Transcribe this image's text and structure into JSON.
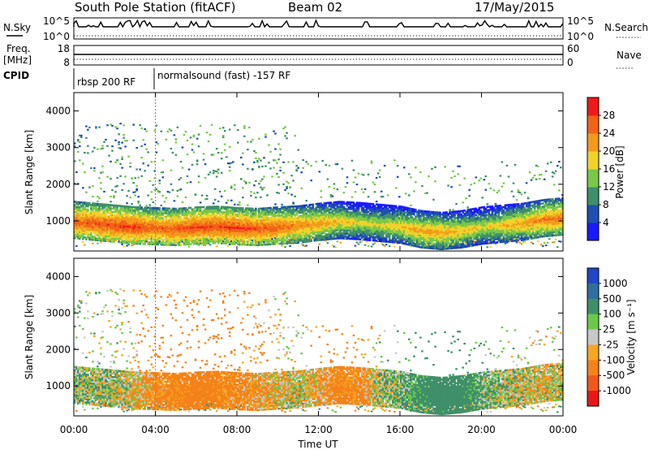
{
  "header": {
    "station": "South Pole Station (fitACF)",
    "beam": "Beam 02",
    "date": "17/May/2015"
  },
  "summary": {
    "nsky_label": "N.Sky",
    "nsearch_label": "N.Search",
    "ticks_left": [
      "10^5",
      "10^0"
    ],
    "ticks_right": [
      "10^5",
      "10^0"
    ],
    "freq_label": "Freq.",
    "freq_unit": "[MHz]",
    "freq_ticks": [
      "18",
      "8"
    ],
    "nave_label": "Nave",
    "nave_ticks": [
      "60",
      "0"
    ],
    "cpid_label": "CPID",
    "cpid_segments": [
      "rbsp 200 RF",
      "normalsound (fast) -157 RF"
    ]
  },
  "axes": {
    "x_ticks": [
      "00:00",
      "04:00",
      "08:00",
      "12:00",
      "16:00",
      "20:00",
      "00:00"
    ],
    "xlabel": "Time UT",
    "ylabel": "Slant Range [km]",
    "y_ticks": [
      "1000",
      "2000",
      "3000",
      "4000"
    ]
  },
  "power_scale": {
    "title": "Power [dB]",
    "ticks": [
      "4",
      "8",
      "12",
      "16",
      "20",
      "24",
      "28"
    ],
    "colors": [
      "#1a1aff",
      "#1f4fb0",
      "#3f8f6a",
      "#79c84a",
      "#f0d22a",
      "#f39a1c",
      "#f26217",
      "#ef1a1a"
    ]
  },
  "velocity_scale": {
    "title": "Velocity [m s⁻¹]",
    "ticks": [
      "1000",
      "500",
      "100",
      "25",
      "-25",
      "-100",
      "-500",
      "-1000"
    ],
    "colors": [
      "#2346c7",
      "#2f6f9f",
      "#3f8f6a",
      "#6cc84a",
      "#c8c8c8",
      "#f5a623",
      "#f4821a",
      "#f2581b",
      "#e81818"
    ]
  },
  "chart_data": [
    {
      "type": "heatmap",
      "title": "Power [dB]",
      "xlabel": "Time UT",
      "ylabel": "Slant Range [km]",
      "xlim": [
        0,
        24
      ],
      "ylim": [
        180,
        4500
      ],
      "x": [
        0,
        1,
        2,
        3,
        4,
        5,
        6,
        7,
        8,
        9,
        10,
        11,
        12,
        13,
        14,
        15,
        16,
        17,
        18,
        19,
        20,
        21,
        22,
        23,
        24
      ],
      "series": [
        {
          "name": "main_band_center_km",
          "values": [
            950,
            900,
            850,
            800,
            780,
            760,
            800,
            820,
            780,
            760,
            800,
            830,
            900,
            950,
            920,
            870,
            820,
            700,
            650,
            700,
            800,
            850,
            900,
            1000,
            1050
          ]
        },
        {
          "name": "main_band_peak_dB",
          "values": [
            26,
            27,
            28,
            28,
            26,
            27,
            28,
            28,
            28,
            27,
            26,
            24,
            22,
            20,
            18,
            18,
            20,
            22,
            22,
            20,
            18,
            20,
            22,
            24,
            25
          ]
        }
      ]
    },
    {
      "type": "heatmap",
      "title": "Velocity [m s⁻¹]",
      "xlabel": "Time UT",
      "ylabel": "Slant Range [km]",
      "xlim": [
        0,
        24
      ],
      "ylim": [
        180,
        4500
      ],
      "x": [
        0,
        1,
        2,
        3,
        4,
        5,
        6,
        7,
        8,
        9,
        10,
        11,
        12,
        13,
        14,
        15,
        16,
        17,
        18,
        19,
        20,
        21,
        22,
        23,
        24
      ],
      "series": [
        {
          "name": "main_band_velocity_ms",
          "values": [
            50,
            40,
            30,
            -50,
            -150,
            -200,
            -250,
            -200,
            -150,
            -100,
            -50,
            0,
            -100,
            -200,
            -150,
            30,
            100,
            200,
            300,
            250,
            100,
            50,
            0,
            -50,
            30
          ]
        }
      ]
    }
  ]
}
